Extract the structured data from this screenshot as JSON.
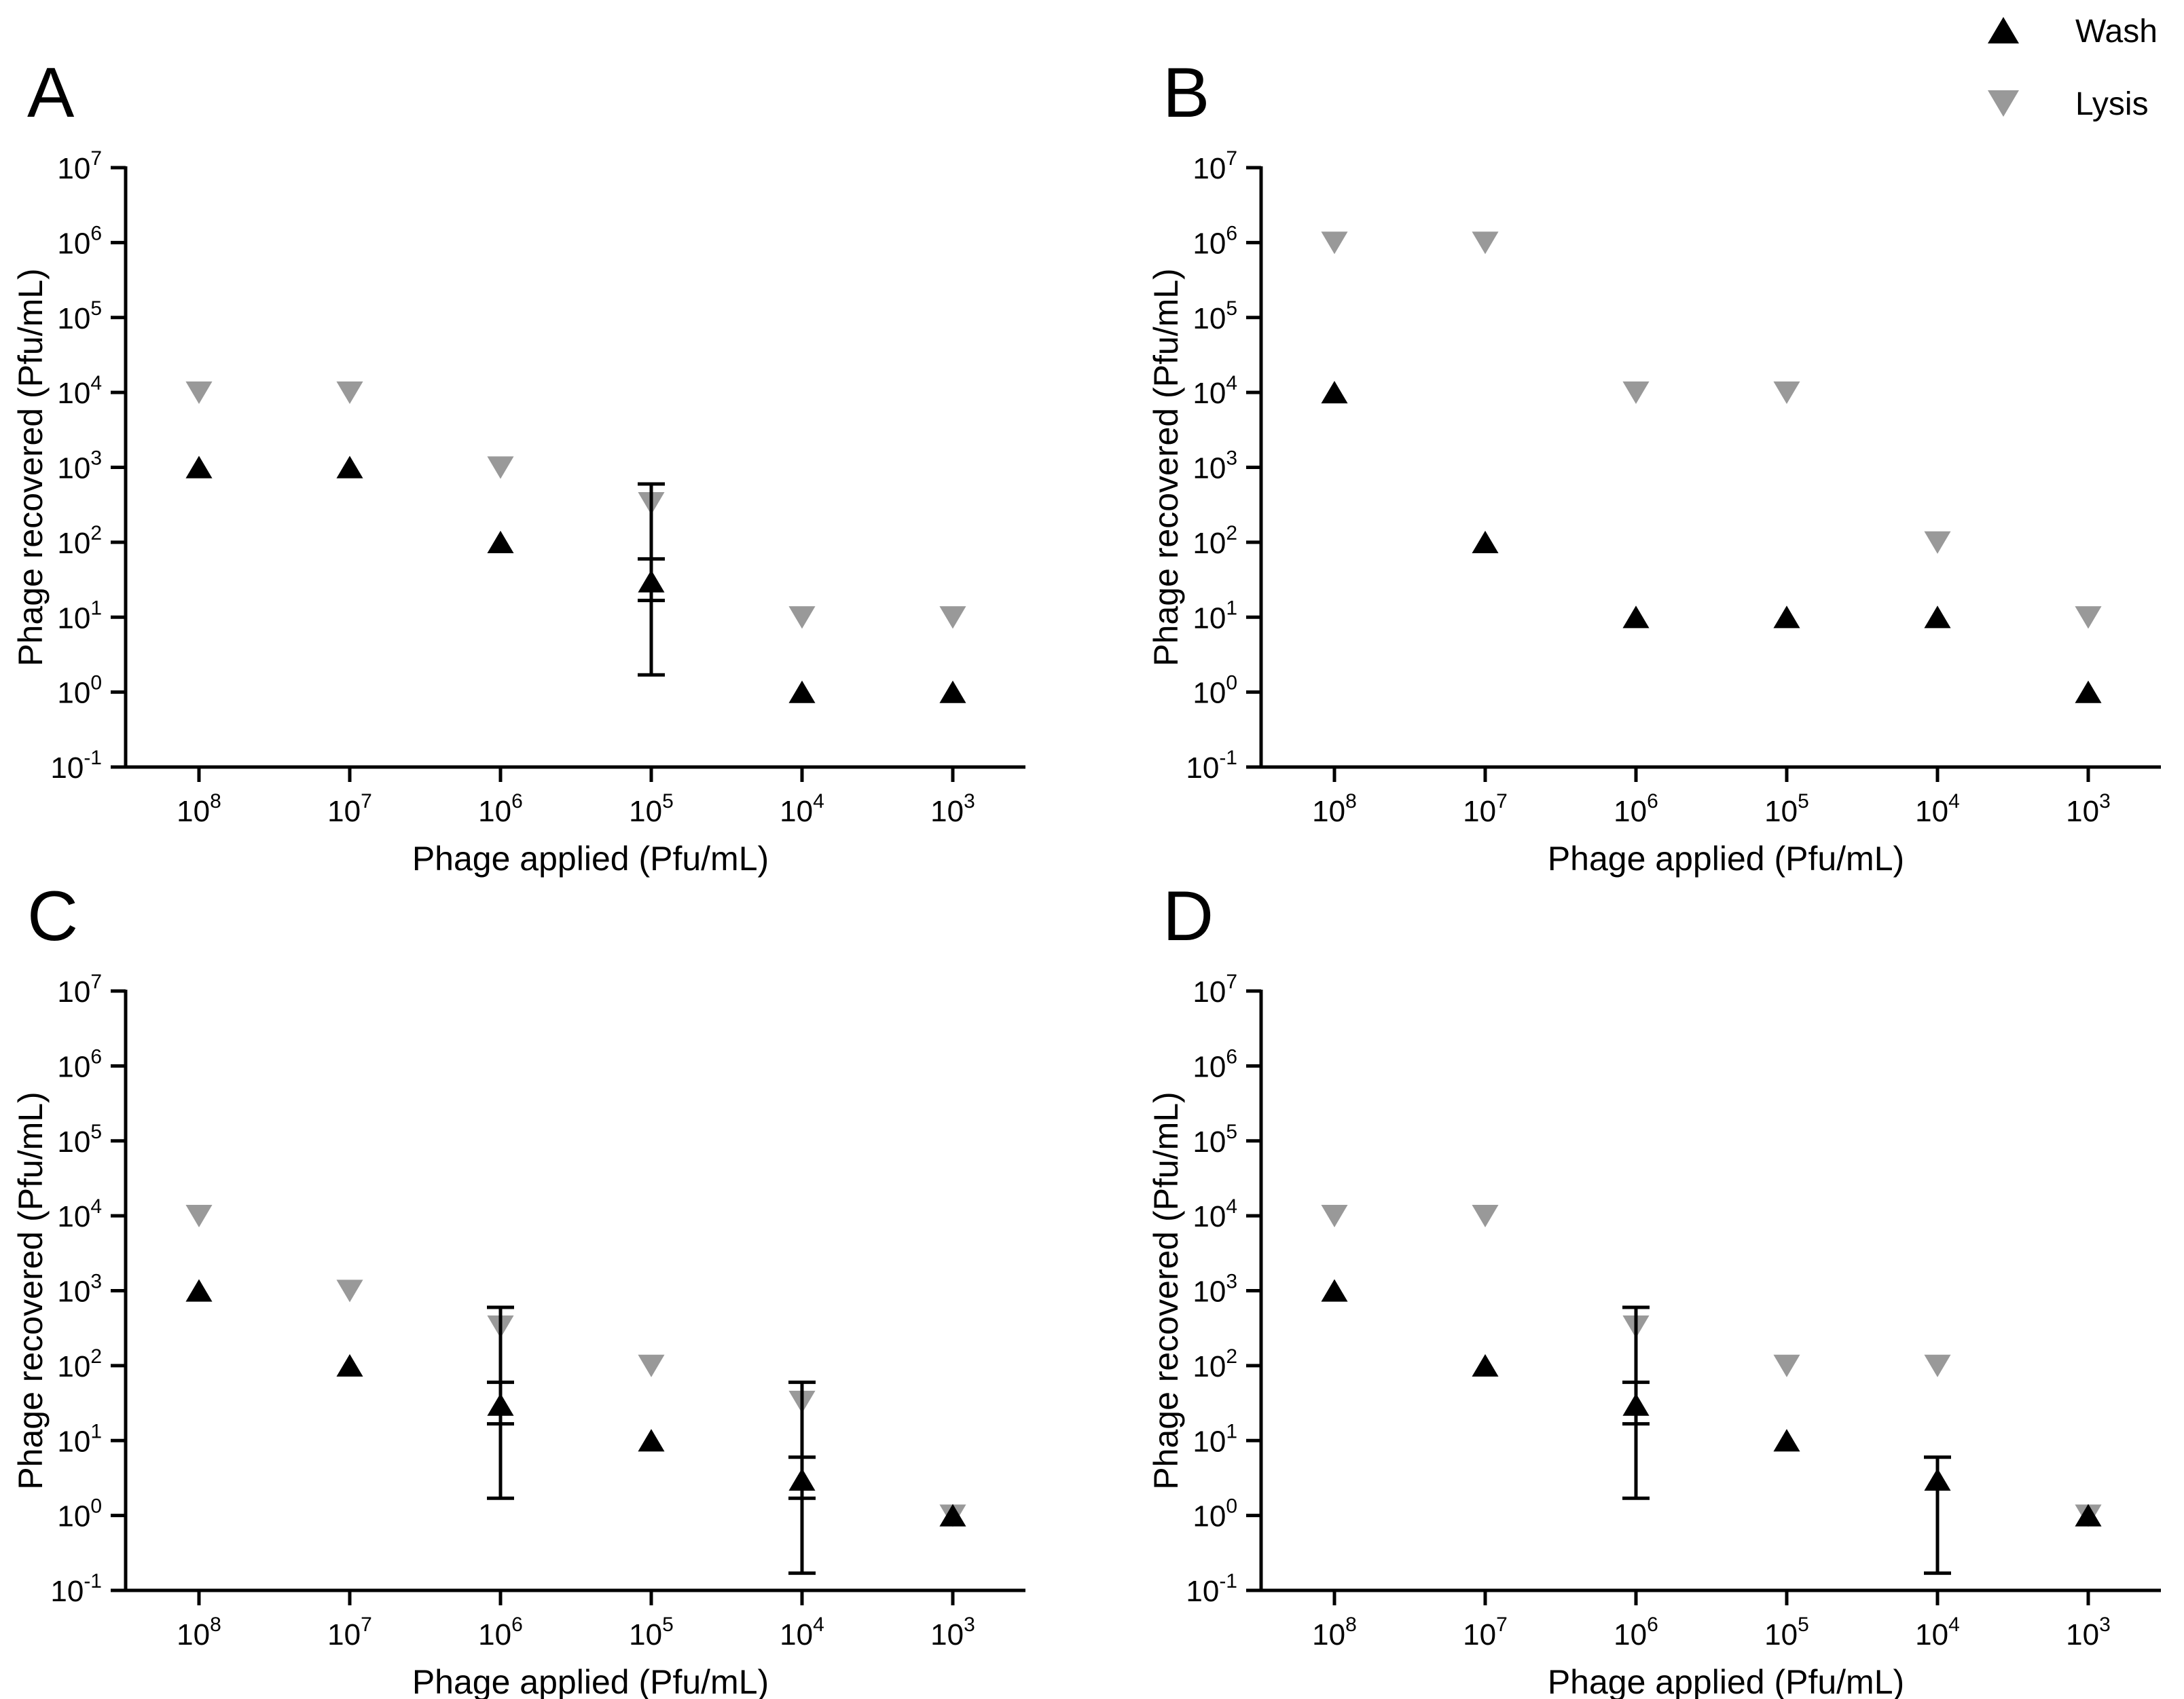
{
  "legend": {
    "placement": "top-right",
    "entries": [
      {
        "label": "Wash",
        "marker": "triangle-up",
        "color": "#000000"
      },
      {
        "label": "Lysis",
        "marker": "triangle-down",
        "color": "#999999"
      }
    ]
  },
  "colors": {
    "wash": "#000000",
    "lysis": "#999999",
    "axis": "#000000"
  },
  "chart_data": [
    {
      "panel": "A",
      "type": "scatter",
      "xlabel": "Phage applied (Pfu/mL)",
      "ylabel": "Phage recovered (Pfu/mL)",
      "y_scale": "log10",
      "ylim_exp": [
        -1,
        7
      ],
      "categories": [
        {
          "base": "10",
          "exp": "8"
        },
        {
          "base": "10",
          "exp": "7"
        },
        {
          "base": "10",
          "exp": "6"
        },
        {
          "base": "10",
          "exp": "5"
        },
        {
          "base": "10",
          "exp": "4"
        },
        {
          "base": "10",
          "exp": "3"
        }
      ],
      "series": [
        {
          "name": "Wash",
          "values": [
            1000,
            1000,
            100,
            30,
            1,
            1
          ],
          "error": [
            null,
            null,
            null,
            [
              1.7,
              60
            ],
            null,
            null
          ]
        },
        {
          "name": "Lysis",
          "values": [
            10000,
            10000,
            1000,
            333,
            10,
            10
          ],
          "error": [
            null,
            null,
            null,
            [
              16.7,
              600
            ],
            null,
            null
          ]
        }
      ]
    },
    {
      "panel": "B",
      "type": "scatter",
      "xlabel": "Phage applied (Pfu/mL)",
      "ylabel": "Phage recovered (Pfu/mL)",
      "y_scale": "log10",
      "ylim_exp": [
        -1,
        7
      ],
      "categories": [
        {
          "base": "10",
          "exp": "8"
        },
        {
          "base": "10",
          "exp": "7"
        },
        {
          "base": "10",
          "exp": "6"
        },
        {
          "base": "10",
          "exp": "5"
        },
        {
          "base": "10",
          "exp": "4"
        },
        {
          "base": "10",
          "exp": "3"
        }
      ],
      "series": [
        {
          "name": "Wash",
          "values": [
            10000,
            100,
            10,
            10,
            10,
            1
          ],
          "error": [
            null,
            null,
            null,
            null,
            null,
            null
          ]
        },
        {
          "name": "Lysis",
          "values": [
            1000000,
            1000000,
            10000,
            10000,
            100,
            10
          ],
          "error": [
            null,
            null,
            null,
            null,
            null,
            null
          ]
        }
      ]
    },
    {
      "panel": "C",
      "type": "scatter",
      "xlabel": "Phage applied (Pfu/mL)",
      "ylabel": "Phage recovered (Pfu/mL)",
      "y_scale": "log10",
      "ylim_exp": [
        -1,
        7
      ],
      "categories": [
        {
          "base": "10",
          "exp": "8"
        },
        {
          "base": "10",
          "exp": "7"
        },
        {
          "base": "10",
          "exp": "6"
        },
        {
          "base": "10",
          "exp": "5"
        },
        {
          "base": "10",
          "exp": "4"
        },
        {
          "base": "10",
          "exp": "3"
        }
      ],
      "series": [
        {
          "name": "Wash",
          "values": [
            1000,
            100,
            30,
            10,
            3,
            1
          ],
          "error": [
            null,
            null,
            [
              1.7,
              60
            ],
            null,
            [
              0.17,
              6
            ],
            null
          ]
        },
        {
          "name": "Lysis",
          "values": [
            10000,
            1000,
            333,
            100,
            33,
            1
          ],
          "error": [
            null,
            null,
            [
              16.7,
              600
            ],
            null,
            [
              1.7,
              60
            ],
            null
          ]
        }
      ]
    },
    {
      "panel": "D",
      "type": "scatter",
      "xlabel": "Phage applied (Pfu/mL)",
      "ylabel": "Phage recovered (Pfu/mL)",
      "y_scale": "log10",
      "ylim_exp": [
        -1,
        7
      ],
      "categories": [
        {
          "base": "10",
          "exp": "8"
        },
        {
          "base": "10",
          "exp": "7"
        },
        {
          "base": "10",
          "exp": "6"
        },
        {
          "base": "10",
          "exp": "5"
        },
        {
          "base": "10",
          "exp": "4"
        },
        {
          "base": "10",
          "exp": "3"
        }
      ],
      "series": [
        {
          "name": "Wash",
          "values": [
            1000,
            100,
            30,
            10,
            3,
            1
          ],
          "error": [
            null,
            null,
            [
              1.7,
              60
            ],
            null,
            [
              0.17,
              6
            ],
            null
          ]
        },
        {
          "name": "Lysis",
          "values": [
            10000,
            10000,
            333,
            100,
            100,
            1
          ],
          "error": [
            null,
            null,
            [
              16.7,
              600
            ],
            null,
            null,
            null
          ]
        }
      ]
    }
  ]
}
